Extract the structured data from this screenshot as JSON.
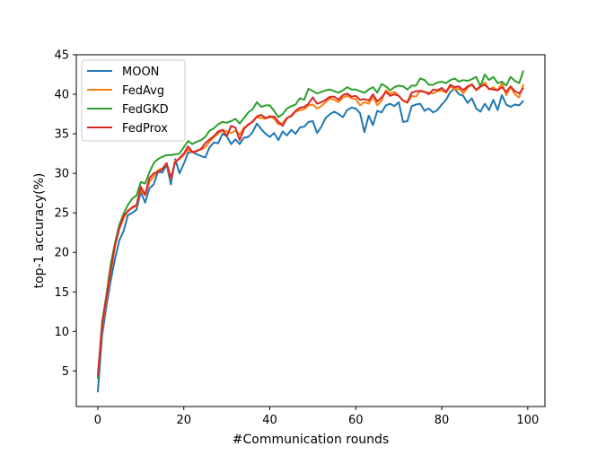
{
  "chart_data": {
    "type": "line",
    "title": "",
    "xlabel": "#Communication rounds",
    "ylabel": "top-1 accuracy(%)",
    "xlim": [
      -5,
      104
    ],
    "ylim": [
      0.5,
      45
    ],
    "xticks": [
      0,
      20,
      40,
      60,
      80,
      100
    ],
    "yticks": [
      5,
      10,
      15,
      20,
      25,
      30,
      35,
      40,
      45
    ],
    "grid": false,
    "legend_position": "top-left",
    "x": [
      0,
      1,
      2,
      3,
      4,
      5,
      6,
      7,
      8,
      9,
      10,
      11,
      12,
      13,
      14,
      15,
      16,
      17,
      18,
      19,
      20,
      21,
      22,
      23,
      24,
      25,
      26,
      27,
      28,
      29,
      30,
      31,
      32,
      33,
      34,
      35,
      36,
      37,
      38,
      39,
      40,
      41,
      42,
      43,
      44,
      45,
      46,
      47,
      48,
      49,
      50,
      51,
      52,
      53,
      54,
      55,
      56,
      57,
      58,
      59,
      60,
      61,
      62,
      63,
      64,
      65,
      66,
      67,
      68,
      69,
      70,
      71,
      72,
      73,
      74,
      75,
      76,
      77,
      78,
      79,
      80,
      81,
      82,
      83,
      84,
      85,
      86,
      87,
      88,
      89,
      90,
      91,
      92,
      93,
      94,
      95,
      96,
      97,
      98,
      99
    ],
    "series": [
      {
        "name": "MOON",
        "color": "#1f77b4",
        "values": [
          2.3,
          9.5,
          13.2,
          16.4,
          19.2,
          21.5,
          22.7,
          24.7,
          25.0,
          25.4,
          27.6,
          26.3,
          28.1,
          28.6,
          30.2,
          30.1,
          31.1,
          28.6,
          31.8,
          30.0,
          31.2,
          32.6,
          32.7,
          32.4,
          32.2,
          32.0,
          33.3,
          33.9,
          33.8,
          35.0,
          34.7,
          33.7,
          34.3,
          33.7,
          34.5,
          34.6,
          35.2,
          36.3,
          35.6,
          35.0,
          34.6,
          35.1,
          34.2,
          35.3,
          34.8,
          35.5,
          35.0,
          35.8,
          35.9,
          36.5,
          36.6,
          35.1,
          35.9,
          37.0,
          37.5,
          37.8,
          37.5,
          37.1,
          38.0,
          38.3,
          38.2,
          37.6,
          35.2,
          37.3,
          36.1,
          37.9,
          37.7,
          38.6,
          38.8,
          38.5,
          39.0,
          36.5,
          36.6,
          38.5,
          38.7,
          38.8,
          37.9,
          38.2,
          37.7,
          38.0,
          38.7,
          39.3,
          40.3,
          40.7,
          40.0,
          39.8,
          38.9,
          39.5,
          38.2,
          37.8,
          38.8,
          38.0,
          39.3,
          38.0,
          39.9,
          38.7,
          38.4,
          38.7,
          38.6,
          39.2
        ]
      },
      {
        "name": "FedAvg",
        "color": "#ff7f0e",
        "values": [
          4.0,
          10.5,
          14.0,
          17.5,
          20.8,
          23.0,
          24.3,
          25.3,
          25.6,
          25.9,
          27.9,
          27.2,
          28.9,
          29.6,
          30.4,
          30.6,
          31.2,
          29.3,
          31.6,
          31.8,
          32.3,
          33.0,
          32.6,
          32.9,
          33.0,
          33.3,
          34.0,
          34.6,
          35.0,
          35.5,
          35.3,
          35.1,
          35.4,
          34.9,
          35.8,
          36.1,
          36.6,
          37.1,
          37.0,
          36.9,
          37.3,
          36.9,
          36.2,
          36.4,
          37.0,
          37.2,
          37.8,
          38.0,
          38.1,
          38.6,
          38.7,
          38.2,
          38.5,
          39.0,
          39.5,
          39.3,
          39.0,
          39.6,
          39.8,
          39.5,
          39.4,
          38.6,
          39.0,
          38.8,
          39.7,
          38.6,
          39.2,
          40.5,
          40.1,
          40.3,
          39.8,
          39.2,
          38.9,
          39.8,
          39.7,
          40.5,
          40.3,
          40.2,
          40.1,
          40.4,
          40.5,
          40.2,
          41.0,
          40.6,
          40.7,
          40.1,
          40.8,
          41.3,
          40.5,
          40.9,
          41.5,
          40.6,
          40.9,
          40.5,
          41.4,
          39.9,
          40.9,
          40.0,
          39.6,
          41.3
        ]
      },
      {
        "name": "FedGKD",
        "color": "#2ca02c",
        "values": [
          4.0,
          11.2,
          14.6,
          18.5,
          21.2,
          23.5,
          24.9,
          26.0,
          26.8,
          27.2,
          28.9,
          28.7,
          30.1,
          31.3,
          31.8,
          32.1,
          32.3,
          32.3,
          32.4,
          32.5,
          33.3,
          34.1,
          33.7,
          34.0,
          34.2,
          34.6,
          35.4,
          35.7,
          36.2,
          36.5,
          36.4,
          36.6,
          36.9,
          36.3,
          37.0,
          37.7,
          38.1,
          39.0,
          38.4,
          38.6,
          38.6,
          37.9,
          37.1,
          37.5,
          38.2,
          38.5,
          38.7,
          39.5,
          39.3,
          40.7,
          40.4,
          40.1,
          40.3,
          40.5,
          40.6,
          40.4,
          40.2,
          40.5,
          40.9,
          40.6,
          40.6,
          40.4,
          40.2,
          40.6,
          40.9,
          40.2,
          41.3,
          41.0,
          40.5,
          40.9,
          41.1,
          41.0,
          40.6,
          41.1,
          41.1,
          42.0,
          41.8,
          41.2,
          41.2,
          41.5,
          41.6,
          41.4,
          41.8,
          42.0,
          41.6,
          41.8,
          41.7,
          41.9,
          42.2,
          41.0,
          42.5,
          41.8,
          42.2,
          41.4,
          41.6,
          41.1,
          42.2,
          41.7,
          41.4,
          43.0
        ]
      },
      {
        "name": "FedProx",
        "color": "#d62728",
        "values": [
          4.4,
          10.8,
          14.3,
          17.8,
          20.9,
          23.0,
          24.6,
          25.2,
          25.7,
          26.0,
          28.3,
          27.3,
          29.4,
          30.0,
          30.2,
          30.5,
          31.3,
          29.4,
          31.4,
          31.9,
          32.5,
          33.4,
          32.7,
          32.8,
          33.1,
          33.8,
          34.3,
          34.7,
          35.3,
          35.5,
          34.7,
          36.0,
          35.8,
          34.2,
          35.6,
          36.2,
          36.5,
          37.2,
          37.4,
          37.0,
          37.1,
          37.2,
          36.5,
          36.0,
          37.0,
          37.3,
          37.9,
          38.3,
          38.4,
          38.8,
          39.6,
          38.8,
          39.0,
          39.3,
          39.7,
          39.7,
          39.3,
          39.9,
          40.1,
          39.7,
          39.8,
          39.3,
          39.4,
          39.2,
          40.0,
          39.1,
          39.6,
          40.3,
          39.8,
          40.0,
          39.8,
          39.2,
          39.0,
          40.2,
          40.4,
          40.4,
          40.3,
          40.0,
          40.6,
          40.5,
          40.8,
          40.3,
          41.2,
          40.9,
          41.0,
          40.5,
          41.0,
          41.2,
          40.6,
          41.0,
          41.2,
          40.7,
          40.6,
          40.5,
          40.9,
          40.3,
          41.0,
          40.4,
          40.1,
          40.8
        ]
      }
    ]
  }
}
